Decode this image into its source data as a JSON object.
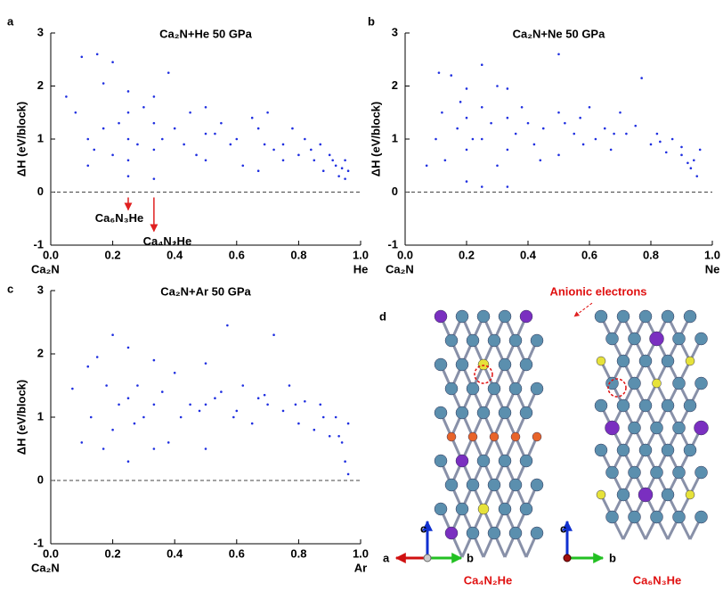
{
  "chart_data": [
    {
      "type": "scatter",
      "panel": "a",
      "title": "Ca₂N+He   50 GPa",
      "y_label": "ΔH (eV/block)",
      "x_start_label": "Ca₂N",
      "x_end_label": "He",
      "xlim": [
        0,
        1
      ],
      "ylim": [
        -1,
        3
      ],
      "xticks": [
        {
          "value": 0,
          "label": "0.0"
        },
        {
          "value": 0.2,
          "label": "0.2"
        },
        {
          "value": 0.4,
          "label": "0.4"
        },
        {
          "value": 0.6,
          "label": "0.6"
        },
        {
          "value": 0.8,
          "label": "0.8"
        },
        {
          "value": 1,
          "label": "1.0"
        }
      ],
      "yticks": [
        -1,
        0,
        1,
        2,
        3
      ],
      "reference_y": 0,
      "annotations": [
        {
          "text": "Ca₆N₃He",
          "x": 0.25
        },
        {
          "text": "Ca₄N₂He",
          "x": 0.333
        }
      ],
      "series": [
        {
          "color": "#1f2fe0",
          "x": [
            0.05,
            0.08,
            0.1,
            0.12,
            0.12,
            0.15,
            0.17,
            0.2,
            0.2,
            0.17,
            0.25,
            0.25,
            0.25,
            0.25,
            0.25,
            0.333,
            0.333,
            0.333,
            0.333,
            0.3,
            0.38,
            0.4,
            0.43,
            0.45,
            0.5,
            0.5,
            0.5,
            0.55,
            0.58,
            0.6,
            0.62,
            0.65,
            0.67,
            0.67,
            0.7,
            0.72,
            0.75,
            0.75,
            0.78,
            0.8,
            0.82,
            0.85,
            0.87,
            0.88,
            0.9,
            0.92,
            0.93,
            0.95,
            0.95,
            0.96,
            0.14,
            0.22,
            0.28,
            0.36,
            0.47,
            0.53,
            0.69,
            0.84,
            0.91,
            0.94
          ],
          "values": [
            1.8,
            1.5,
            2.55,
            1.0,
            0.5,
            2.6,
            1.2,
            2.45,
            0.7,
            2.05,
            1.9,
            1.5,
            1.0,
            0.6,
            0.3,
            1.8,
            1.3,
            0.8,
            0.25,
            1.6,
            2.25,
            1.2,
            0.9,
            1.5,
            1.6,
            1.1,
            0.6,
            1.3,
            0.9,
            1.0,
            0.5,
            1.4,
            1.2,
            0.4,
            1.5,
            0.8,
            0.9,
            0.6,
            1.2,
            0.7,
            1.0,
            0.6,
            0.9,
            0.4,
            0.7,
            0.5,
            0.3,
            0.6,
            0.25,
            0.4,
            0.8,
            1.3,
            0.9,
            1.0,
            0.7,
            1.1,
            0.9,
            0.8,
            0.6,
            0.45
          ]
        }
      ]
    },
    {
      "type": "scatter",
      "panel": "b",
      "title": "Ca₂N+Ne   50 GPa",
      "y_label": "ΔH (eV/block)",
      "x_start_label": "Ca₂N",
      "x_end_label": "Ne",
      "xlim": [
        0,
        1
      ],
      "ylim": [
        -1,
        3
      ],
      "xticks": [
        {
          "value": 0,
          "label": "0.0"
        },
        {
          "value": 0.2,
          "label": "0.2"
        },
        {
          "value": 0.4,
          "label": "0.4"
        },
        {
          "value": 0.6,
          "label": "0.6"
        },
        {
          "value": 0.8,
          "label": "0.8"
        },
        {
          "value": 1,
          "label": "1.0"
        }
      ],
      "yticks": [
        -1,
        0,
        1,
        2,
        3
      ],
      "reference_y": 0,
      "series": [
        {
          "color": "#1f2fe0",
          "x": [
            0.07,
            0.1,
            0.11,
            0.12,
            0.15,
            0.17,
            0.2,
            0.2,
            0.2,
            0.2,
            0.22,
            0.25,
            0.25,
            0.25,
            0.25,
            0.28,
            0.3,
            0.333,
            0.333,
            0.333,
            0.333,
            0.36,
            0.38,
            0.4,
            0.42,
            0.45,
            0.5,
            0.5,
            0.5,
            0.52,
            0.55,
            0.58,
            0.6,
            0.62,
            0.65,
            0.67,
            0.7,
            0.72,
            0.75,
            0.77,
            0.8,
            0.82,
            0.85,
            0.87,
            0.9,
            0.92,
            0.94,
            0.95,
            0.96,
            0.13,
            0.18,
            0.3,
            0.44,
            0.57,
            0.68,
            0.83,
            0.9,
            0.93
          ],
          "values": [
            0.5,
            1.0,
            2.25,
            1.5,
            2.2,
            1.2,
            1.95,
            1.4,
            0.8,
            0.2,
            1.0,
            2.4,
            1.6,
            1.0,
            0.1,
            1.3,
            2.0,
            1.95,
            1.4,
            0.8,
            0.1,
            1.1,
            1.6,
            1.3,
            0.9,
            1.2,
            2.6,
            1.5,
            0.7,
            1.3,
            1.1,
            0.9,
            1.6,
            1.0,
            1.2,
            0.8,
            1.5,
            1.1,
            1.25,
            2.15,
            0.9,
            1.1,
            0.75,
            1.0,
            0.7,
            0.55,
            0.6,
            0.3,
            0.8,
            0.6,
            1.7,
            0.5,
            0.6,
            1.4,
            1.1,
            0.95,
            0.85,
            0.45
          ]
        }
      ]
    },
    {
      "type": "scatter",
      "panel": "c",
      "title": "Ca₂N+Ar   50 GPa",
      "y_label": "ΔH (eV/block)",
      "x_start_label": "Ca₂N",
      "x_end_label": "Ar",
      "xlim": [
        0,
        1
      ],
      "ylim": [
        -1,
        3
      ],
      "xticks": [
        {
          "value": 0,
          "label": "0.0"
        },
        {
          "value": 0.2,
          "label": "0.2"
        },
        {
          "value": 0.4,
          "label": "0.4"
        },
        {
          "value": 0.6,
          "label": "0.6"
        },
        {
          "value": 0.8,
          "label": "0.8"
        },
        {
          "value": 1,
          "label": "1.0"
        }
      ],
      "yticks": [
        -1,
        0,
        1,
        2,
        3
      ],
      "reference_y": 0,
      "series": [
        {
          "color": "#1f2fe0",
          "x": [
            0.07,
            0.1,
            0.12,
            0.15,
            0.17,
            0.2,
            0.2,
            0.22,
            0.25,
            0.25,
            0.25,
            0.28,
            0.3,
            0.333,
            0.333,
            0.333,
            0.36,
            0.4,
            0.42,
            0.45,
            0.5,
            0.5,
            0.5,
            0.53,
            0.55,
            0.57,
            0.6,
            0.62,
            0.65,
            0.67,
            0.7,
            0.72,
            0.75,
            0.77,
            0.8,
            0.82,
            0.85,
            0.87,
            0.9,
            0.92,
            0.94,
            0.95,
            0.96,
            0.96,
            0.13,
            0.18,
            0.27,
            0.38,
            0.48,
            0.59,
            0.69,
            0.79,
            0.88,
            0.93
          ],
          "values": [
            1.45,
            0.6,
            1.8,
            1.95,
            0.5,
            2.3,
            0.8,
            1.2,
            2.1,
            1.3,
            0.3,
            1.5,
            1.0,
            1.9,
            1.2,
            0.5,
            1.4,
            1.7,
            1.0,
            1.2,
            1.85,
            1.2,
            0.5,
            1.3,
            1.4,
            2.45,
            1.1,
            1.5,
            0.9,
            1.3,
            1.2,
            2.3,
            1.1,
            1.5,
            0.9,
            1.25,
            0.8,
            1.2,
            0.7,
            1.0,
            0.6,
            0.3,
            0.9,
            0.1,
            1.0,
            1.5,
            0.9,
            0.6,
            1.1,
            1.0,
            1.35,
            1.2,
            1.0,
            0.7
          ]
        }
      ]
    }
  ],
  "diagram": {
    "panel": "d",
    "annotation": "Anionic electrons",
    "left_label": "Ca₄N₂He",
    "right_label": "Ca₆N₃He",
    "left_axes": [
      "a",
      "b",
      "c"
    ],
    "right_axes": [
      "b",
      "c"
    ]
  }
}
